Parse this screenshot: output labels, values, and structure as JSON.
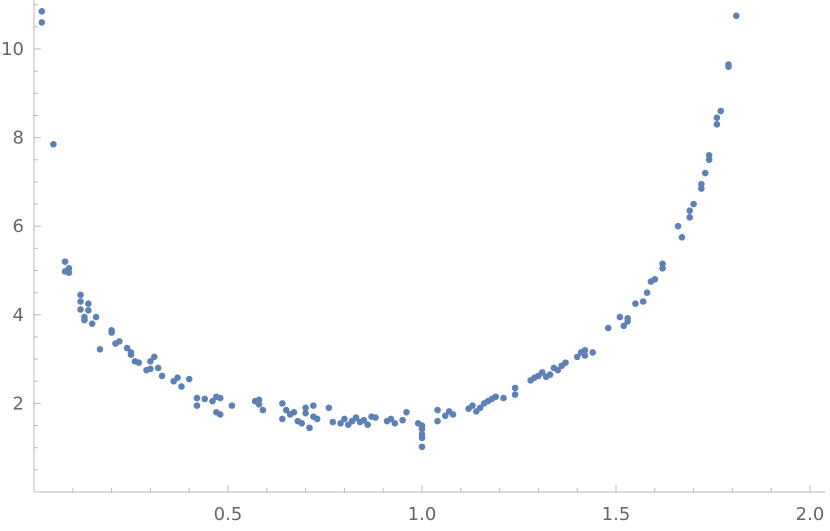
{
  "chart_data": {
    "type": "scatter",
    "title": "",
    "xlabel": "",
    "ylabel": "",
    "xlim": [
      0.0,
      2.04
    ],
    "ylim": [
      0.0,
      11.1
    ],
    "grid": false,
    "legend": "none",
    "x_ticks": [
      0.5,
      1.0,
      1.5,
      2.0
    ],
    "x_tick_labels": [
      "0.5",
      "1.0",
      "1.5",
      "2.0"
    ],
    "y_ticks": [
      2,
      4,
      6,
      8,
      10
    ],
    "y_tick_labels": [
      "2",
      "4",
      "6",
      "8",
      "10"
    ],
    "colors": {
      "points": "#5e81b5",
      "axes": "#b8b8b8",
      "labels": "#666666"
    },
    "points": [
      [
        0.02,
        10.85
      ],
      [
        0.02,
        10.6
      ],
      [
        0.05,
        7.85
      ],
      [
        0.08,
        5.2
      ],
      [
        0.09,
        5.05
      ],
      [
        0.09,
        4.95
      ],
      [
        0.08,
        4.98
      ],
      [
        0.12,
        4.45
      ],
      [
        0.12,
        4.3
      ],
      [
        0.12,
        4.12
      ],
      [
        0.13,
        3.95
      ],
      [
        0.13,
        3.88
      ],
      [
        0.14,
        4.25
      ],
      [
        0.14,
        4.1
      ],
      [
        0.15,
        3.8
      ],
      [
        0.16,
        3.95
      ],
      [
        0.17,
        3.22
      ],
      [
        0.2,
        3.6
      ],
      [
        0.2,
        3.65
      ],
      [
        0.21,
        3.35
      ],
      [
        0.22,
        3.4
      ],
      [
        0.24,
        3.25
      ],
      [
        0.25,
        3.15
      ],
      [
        0.25,
        3.1
      ],
      [
        0.26,
        2.95
      ],
      [
        0.27,
        2.92
      ],
      [
        0.29,
        2.75
      ],
      [
        0.3,
        2.78
      ],
      [
        0.3,
        2.95
      ],
      [
        0.31,
        3.05
      ],
      [
        0.32,
        2.8
      ],
      [
        0.33,
        2.62
      ],
      [
        0.36,
        2.5
      ],
      [
        0.37,
        2.58
      ],
      [
        0.38,
        2.38
      ],
      [
        0.4,
        2.55
      ],
      [
        0.42,
        1.95
      ],
      [
        0.42,
        2.12
      ],
      [
        0.44,
        2.1
      ],
      [
        0.46,
        2.05
      ],
      [
        0.47,
        1.8
      ],
      [
        0.47,
        2.15
      ],
      [
        0.48,
        1.75
      ],
      [
        0.48,
        2.12
      ],
      [
        0.51,
        1.95
      ],
      [
        0.57,
        2.05
      ],
      [
        0.58,
        2.08
      ],
      [
        0.58,
        1.98
      ],
      [
        0.59,
        1.85
      ],
      [
        0.64,
        2.0
      ],
      [
        0.64,
        1.65
      ],
      [
        0.65,
        1.85
      ],
      [
        0.66,
        1.75
      ],
      [
        0.67,
        1.8
      ],
      [
        0.68,
        1.6
      ],
      [
        0.69,
        1.55
      ],
      [
        0.7,
        1.9
      ],
      [
        0.7,
        1.78
      ],
      [
        0.71,
        1.45
      ],
      [
        0.72,
        1.7
      ],
      [
        0.72,
        1.95
      ],
      [
        0.73,
        1.65
      ],
      [
        0.76,
        1.9
      ],
      [
        0.77,
        1.58
      ],
      [
        0.79,
        1.55
      ],
      [
        0.8,
        1.65
      ],
      [
        0.81,
        1.52
      ],
      [
        0.82,
        1.6
      ],
      [
        0.83,
        1.68
      ],
      [
        0.84,
        1.58
      ],
      [
        0.85,
        1.62
      ],
      [
        0.86,
        1.52
      ],
      [
        0.87,
        1.7
      ],
      [
        0.88,
        1.68
      ],
      [
        0.91,
        1.6
      ],
      [
        0.92,
        1.65
      ],
      [
        0.93,
        1.55
      ],
      [
        0.95,
        1.62
      ],
      [
        0.96,
        1.8
      ],
      [
        0.99,
        1.55
      ],
      [
        1.0,
        1.5
      ],
      [
        1.0,
        1.42
      ],
      [
        1.0,
        1.3
      ],
      [
        1.0,
        1.22
      ],
      [
        1.0,
        1.02
      ],
      [
        1.04,
        1.85
      ],
      [
        1.04,
        1.6
      ],
      [
        1.06,
        1.72
      ],
      [
        1.07,
        1.82
      ],
      [
        1.08,
        1.75
      ],
      [
        1.12,
        1.88
      ],
      [
        1.13,
        1.95
      ],
      [
        1.14,
        1.82
      ],
      [
        1.15,
        1.9
      ],
      [
        1.16,
        2.0
      ],
      [
        1.17,
        2.05
      ],
      [
        1.18,
        2.1
      ],
      [
        1.19,
        2.15
      ],
      [
        1.21,
        2.12
      ],
      [
        1.24,
        2.2
      ],
      [
        1.24,
        2.35
      ],
      [
        1.28,
        2.52
      ],
      [
        1.29,
        2.58
      ],
      [
        1.3,
        2.62
      ],
      [
        1.31,
        2.7
      ],
      [
        1.32,
        2.6
      ],
      [
        1.33,
        2.65
      ],
      [
        1.34,
        2.8
      ],
      [
        1.35,
        2.75
      ],
      [
        1.36,
        2.85
      ],
      [
        1.37,
        2.92
      ],
      [
        1.4,
        3.05
      ],
      [
        1.41,
        3.15
      ],
      [
        1.42,
        3.2
      ],
      [
        1.42,
        3.08
      ],
      [
        1.44,
        3.15
      ],
      [
        1.48,
        3.7
      ],
      [
        1.51,
        3.95
      ],
      [
        1.52,
        3.75
      ],
      [
        1.53,
        3.85
      ],
      [
        1.53,
        3.92
      ],
      [
        1.55,
        4.25
      ],
      [
        1.57,
        4.3
      ],
      [
        1.58,
        4.5
      ],
      [
        1.59,
        4.75
      ],
      [
        1.6,
        4.8
      ],
      [
        1.62,
        5.15
      ],
      [
        1.62,
        5.05
      ],
      [
        1.66,
        6.0
      ],
      [
        1.67,
        5.75
      ],
      [
        1.69,
        6.2
      ],
      [
        1.69,
        6.35
      ],
      [
        1.7,
        6.5
      ],
      [
        1.72,
        6.85
      ],
      [
        1.72,
        6.95
      ],
      [
        1.73,
        7.2
      ],
      [
        1.74,
        7.5
      ],
      [
        1.74,
        7.6
      ],
      [
        1.76,
        8.3
      ],
      [
        1.76,
        8.45
      ],
      [
        1.77,
        8.6
      ],
      [
        1.79,
        9.6
      ],
      [
        1.79,
        9.65
      ],
      [
        1.81,
        10.75
      ]
    ]
  }
}
